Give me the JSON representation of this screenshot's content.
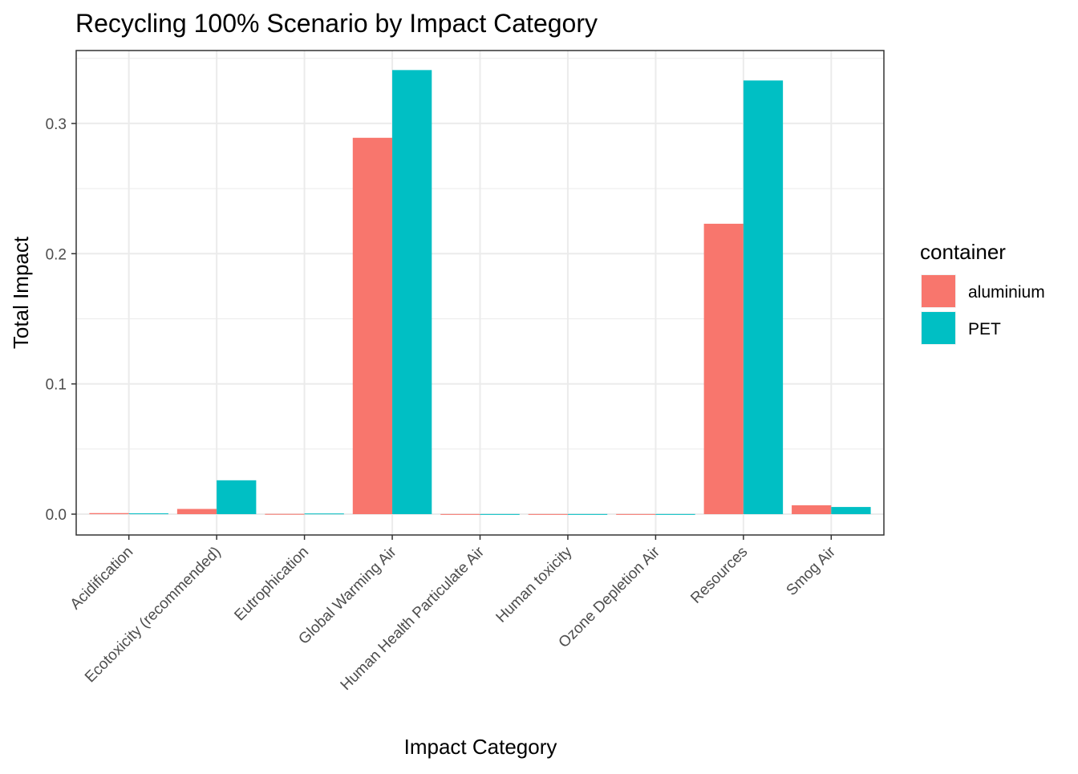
{
  "chart_data": {
    "type": "bar",
    "title": "Recycling 100% Scenario by Impact Category",
    "xlabel": "Impact Category",
    "ylabel": "Total Impact",
    "ylim": [
      -0.016,
      0.356
    ],
    "yticks": [
      0.0,
      0.1,
      0.2,
      0.3
    ],
    "ytick_labels": [
      "0.0",
      "0.1",
      "0.2",
      "0.3"
    ],
    "grid": true,
    "legend_position": "right",
    "legend_title": "container",
    "categories": [
      "Acidification",
      "Ecotoxicity (recommended)",
      "Eutrophication",
      "Global Warming Air",
      "Human Health Particulate Air",
      "Human toxicity",
      "Ozone Depletion Air",
      "Resources",
      "Smog Air"
    ],
    "series": [
      {
        "name": "aluminium",
        "color": "#F8766D",
        "values": [
          0.0008,
          0.004,
          0.0002,
          0.289,
          0.0001,
          0.0001,
          0.0001,
          0.223,
          0.0068
        ]
      },
      {
        "name": "PET",
        "color": "#00BFC4",
        "values": [
          0.0006,
          0.026,
          0.0005,
          0.341,
          0.0001,
          0.0001,
          0.0001,
          0.333,
          0.0055
        ]
      }
    ]
  }
}
